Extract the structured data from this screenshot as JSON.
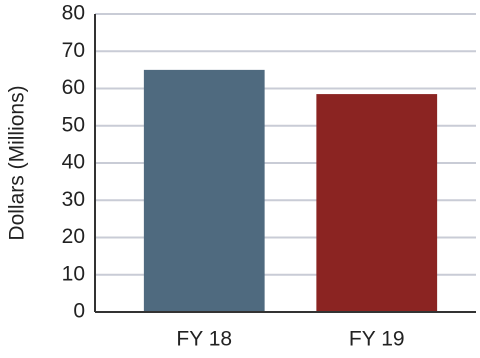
{
  "chart_data": {
    "type": "bar",
    "y_label": "Dollars (Millions)",
    "categories": [
      "FY 18",
      "FY 19"
    ],
    "values": [
      65,
      58.5
    ],
    "colors": [
      "#4f6a7f",
      "#8b2422"
    ],
    "ylim": [
      0,
      80
    ],
    "yticks": [
      0,
      10,
      20,
      30,
      40,
      50,
      60,
      70,
      80
    ],
    "grid": true
  }
}
